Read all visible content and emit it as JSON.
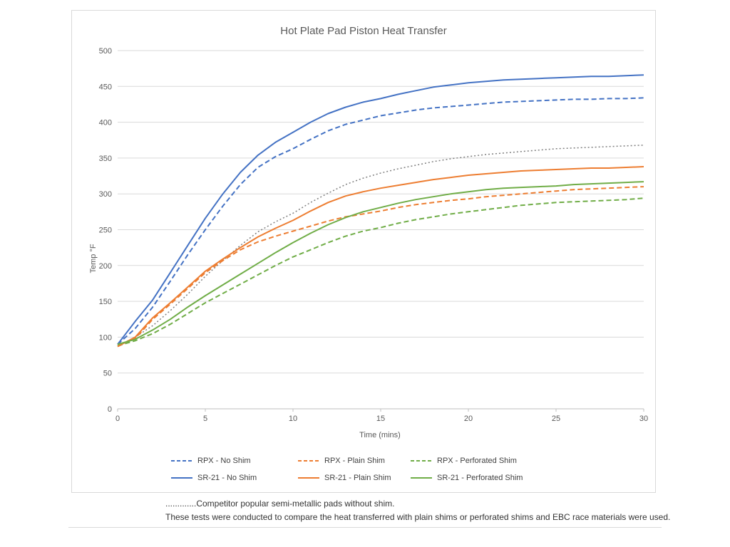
{
  "chart_data": {
    "type": "line",
    "title": "Hot Plate Pad Piston Heat Transfer",
    "xlabel": "Time (mins)",
    "ylabel": "Temp °F",
    "xlim": [
      0,
      30
    ],
    "ylim": [
      0,
      500
    ],
    "x_ticks": [
      0,
      5,
      10,
      15,
      20,
      25,
      30
    ],
    "y_ticks": [
      0,
      50,
      100,
      150,
      200,
      250,
      300,
      350,
      400,
      450,
      500
    ],
    "grid": true,
    "legend_position": "bottom",
    "x": [
      0,
      1,
      2,
      3,
      4,
      5,
      6,
      7,
      8,
      9,
      10,
      11,
      12,
      13,
      14,
      15,
      16,
      17,
      18,
      19,
      20,
      21,
      22,
      23,
      24,
      25,
      26,
      27,
      28,
      29,
      30
    ],
    "series": [
      {
        "name": "RPX - No Shim",
        "color": "#4472C4",
        "dash": "dashed",
        "legend": true,
        "values": [
          90,
          112,
          142,
          178,
          215,
          250,
          283,
          313,
          337,
          352,
          363,
          376,
          388,
          397,
          403,
          409,
          413,
          417,
          420,
          422,
          424,
          426,
          428,
          429,
          430,
          431,
          432,
          432,
          433,
          433,
          434
        ]
      },
      {
        "name": "RPX - Plain Shim",
        "color": "#ED7D31",
        "dash": "dashed",
        "legend": true,
        "values": [
          87,
          98,
          125,
          146,
          168,
          190,
          207,
          222,
          233,
          241,
          248,
          255,
          262,
          268,
          272,
          276,
          281,
          285,
          288,
          291,
          293,
          296,
          298,
          300,
          302,
          304,
          306,
          307,
          308,
          309,
          310
        ]
      },
      {
        "name": "RPX - Perforated Shim",
        "color": "#70AD47",
        "dash": "dashed",
        "legend": true,
        "values": [
          88,
          95,
          105,
          118,
          133,
          148,
          161,
          174,
          187,
          200,
          212,
          222,
          232,
          241,
          248,
          253,
          259,
          264,
          268,
          272,
          275,
          278,
          281,
          284,
          286,
          288,
          289,
          290,
          291,
          292,
          294
        ]
      },
      {
        "name": "SR-21 - No Shim",
        "color": "#4472C4",
        "dash": "solid",
        "legend": true,
        "values": [
          90,
          122,
          152,
          190,
          228,
          266,
          300,
          330,
          354,
          372,
          386,
          400,
          412,
          421,
          428,
          433,
          439,
          444,
          449,
          452,
          455,
          457,
          459,
          460,
          461,
          462,
          463,
          464,
          464,
          465,
          466
        ]
      },
      {
        "name": "SR-21 - Plain Shim",
        "color": "#ED7D31",
        "dash": "solid",
        "legend": true,
        "values": [
          87,
          100,
          127,
          148,
          170,
          192,
          209,
          225,
          240,
          252,
          263,
          276,
          288,
          297,
          303,
          308,
          312,
          316,
          320,
          323,
          326,
          328,
          330,
          332,
          333,
          334,
          335,
          336,
          336,
          337,
          338
        ]
      },
      {
        "name": "SR-21 - Perforated Shim",
        "color": "#70AD47",
        "dash": "solid",
        "legend": true,
        "values": [
          90,
          97,
          110,
          125,
          142,
          158,
          173,
          188,
          203,
          218,
          232,
          245,
          257,
          267,
          275,
          281,
          287,
          292,
          296,
          300,
          303,
          306,
          308,
          309,
          310,
          311,
          313,
          314,
          315,
          316,
          317
        ]
      },
      {
        "name": "Competitor popular semi-metallic pads without shim",
        "color": "#7F7F7F",
        "dash": "dotted",
        "legend": false,
        "values": [
          88,
          100,
          116,
          137,
          160,
          185,
          207,
          228,
          247,
          261,
          273,
          288,
          301,
          313,
          322,
          329,
          335,
          340,
          345,
          349,
          352,
          355,
          357,
          359,
          361,
          363,
          364,
          365,
          366,
          367,
          368
        ]
      }
    ],
    "gridline_color": "#d9d9d9",
    "axis_color": "#bfbfbf",
    "tick_label_color": "#595959"
  },
  "notes": {
    "line1": ".............Competitor popular semi-metallic pads without shim.",
    "line2": "These tests were conducted to  compare the heat transferred with plain shims or perforated shims and EBC race materials were used."
  }
}
